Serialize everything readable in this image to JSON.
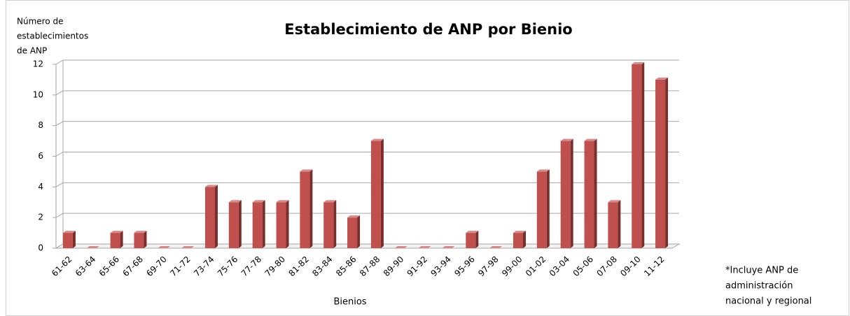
{
  "chart_data": {
    "type": "bar",
    "title": "Establecimiento de  ANP por Bienio",
    "ylabel_lines": [
      "Número de",
      "establecimientos",
      "de ANP"
    ],
    "xlabel": "Bienios",
    "note_lines": [
      "*Incluye ANP de",
      "administración",
      "nacional  y regional"
    ],
    "categories": [
      "61-62",
      "63-64",
      "65-66",
      "67-68",
      "69-70",
      "71-72",
      "73-74",
      "75-76",
      "77-78",
      "79-80",
      "81-82",
      "83-84",
      "85-86",
      "87-88",
      "89-90",
      "91-92",
      "93-94",
      "95-96",
      "97-98",
      "99-00",
      "01-02",
      "03-04",
      "05-06",
      "07-08",
      "09-10",
      "11-12"
    ],
    "values": [
      1,
      0,
      1,
      1,
      0,
      0,
      4,
      3,
      3,
      3,
      5,
      3,
      2,
      7,
      0,
      0,
      0,
      1,
      0,
      1,
      5,
      7,
      7,
      3,
      12,
      11
    ],
    "color": "#c0504d",
    "ylim": [
      0,
      12
    ],
    "yticks": [
      0,
      2,
      4,
      6,
      8,
      10,
      12
    ],
    "grid": true
  }
}
